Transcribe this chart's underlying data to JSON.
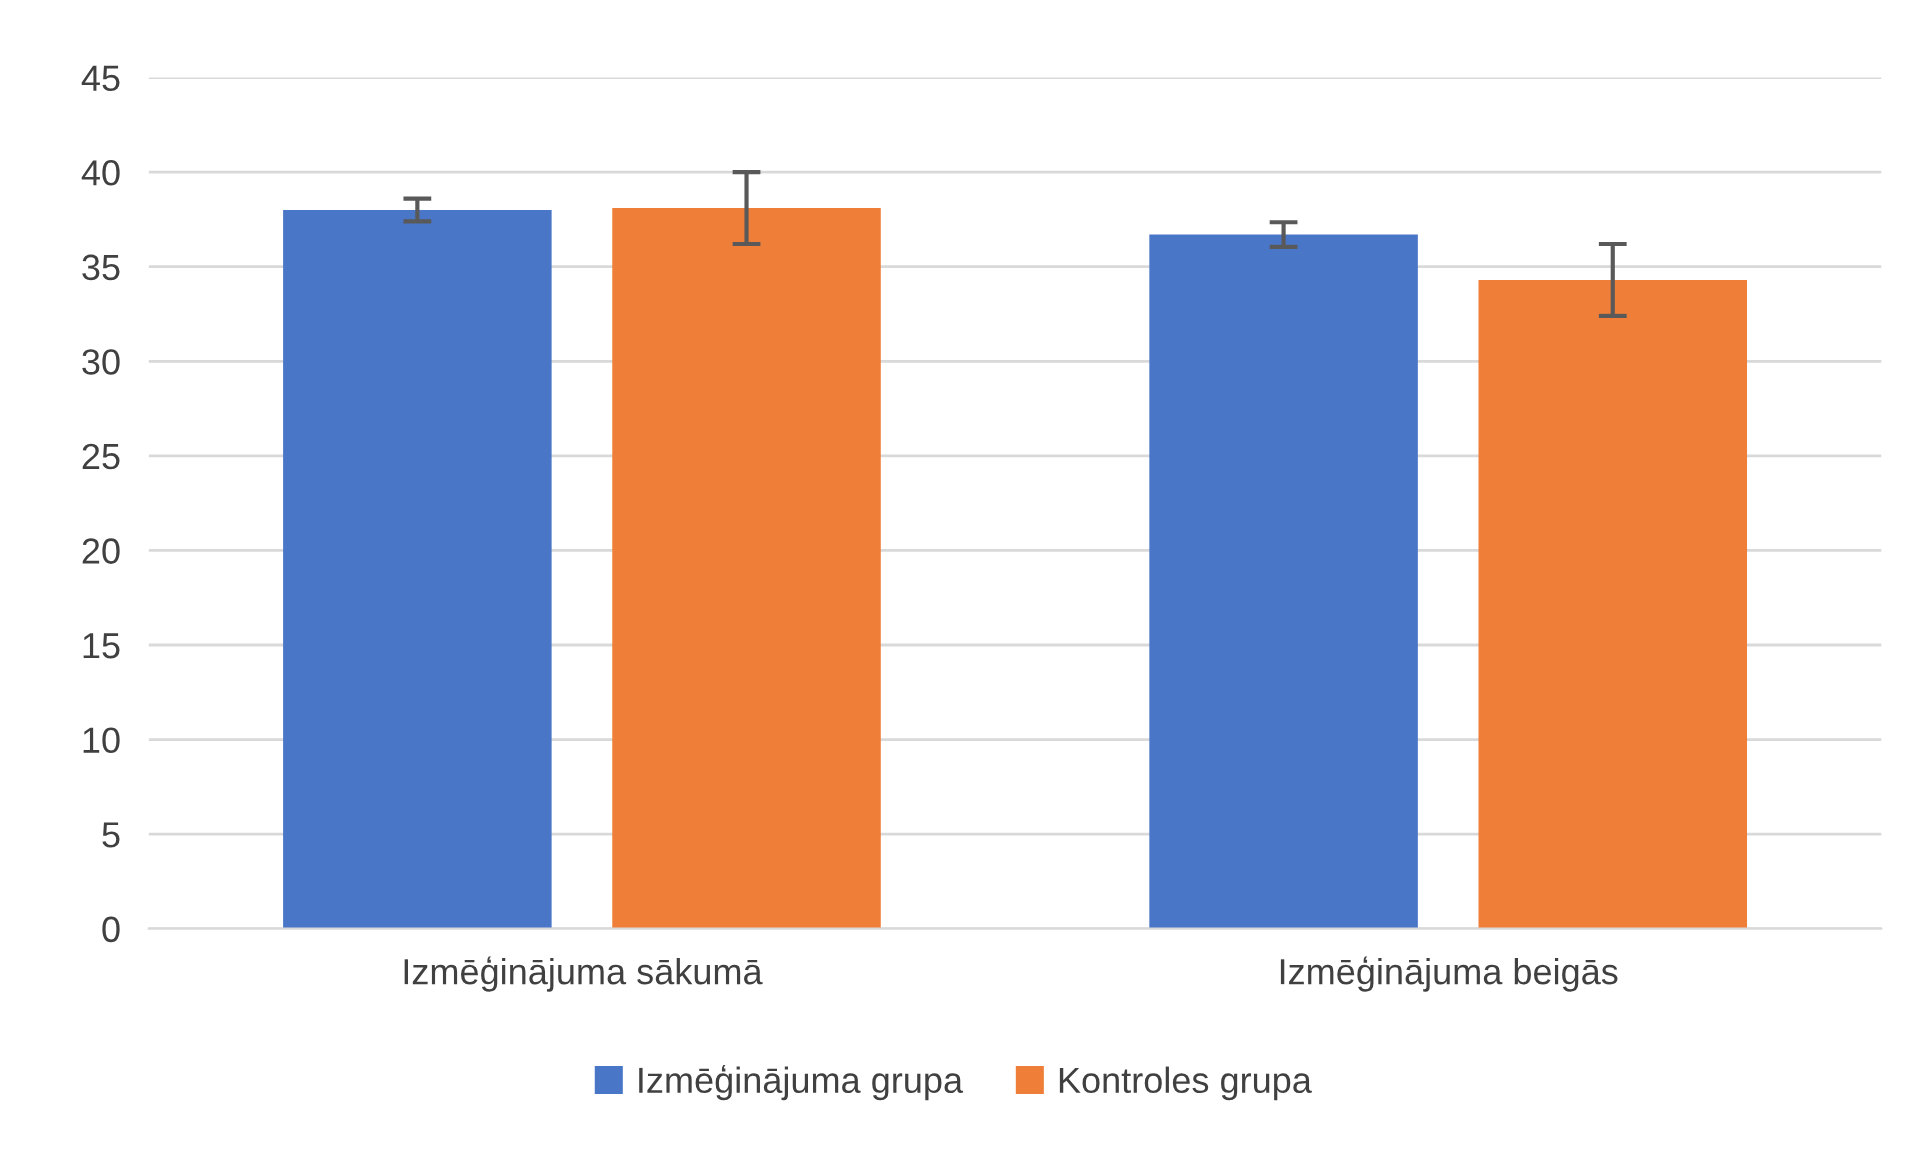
{
  "chart_data": {
    "type": "bar",
    "categories": [
      "Izmēģinājuma sākumā",
      "Izmēģinājuma beigās"
    ],
    "series": [
      {
        "name": "Izmēģinājuma grupa",
        "color": "#4a76c8",
        "values": [
          38.0,
          36.7
        ],
        "errors": [
          0.6,
          0.65
        ]
      },
      {
        "name": "Kontroles grupa",
        "color": "#ef7f38",
        "values": [
          38.1,
          34.3
        ],
        "errors": [
          1.9,
          1.9
        ]
      }
    ],
    "ylim": [
      0,
      45
    ],
    "yticks": [
      0,
      5,
      10,
      15,
      20,
      25,
      30,
      35,
      40,
      45
    ],
    "grid": "y",
    "legend": "bottom"
  }
}
